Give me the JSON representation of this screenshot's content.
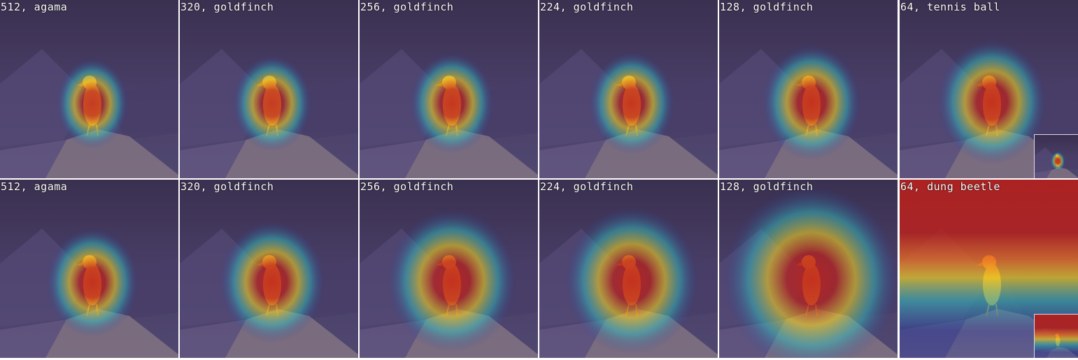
{
  "rows": [
    {
      "panels": [
        {
          "label": "512, agama",
          "spread": 0.18,
          "heat": 0.9,
          "inset": false
        },
        {
          "label": "320, goldfinch",
          "spread": 0.22,
          "heat": 0.9,
          "inset": false
        },
        {
          "label": "256, goldfinch",
          "spread": 0.25,
          "heat": 0.95,
          "inset": false
        },
        {
          "label": "224, goldfinch",
          "spread": 0.26,
          "heat": 0.95,
          "inset": false
        },
        {
          "label": "128, goldfinch",
          "spread": 0.34,
          "heat": 1.0,
          "inset": false
        },
        {
          "label": "64, tennis ball",
          "spread": 0.4,
          "heat": 1.0,
          "inset": true
        }
      ]
    },
    {
      "panels": [
        {
          "label": "512, agama",
          "spread": 0.3,
          "heat": 1.0,
          "inset": false
        },
        {
          "label": "320, goldfinch",
          "spread": 0.38,
          "heat": 1.0,
          "inset": false
        },
        {
          "label": "256, goldfinch",
          "spread": 0.52,
          "heat": 1.0,
          "inset": false
        },
        {
          "label": "224, goldfinch",
          "spread": 0.55,
          "heat": 1.0,
          "inset": false
        },
        {
          "label": "128, goldfinch",
          "spread": 0.8,
          "heat": 1.0,
          "inset": false
        },
        {
          "label": "64, dung beetle",
          "spread": 1.0,
          "heat": 1.0,
          "inset": true
        }
      ]
    }
  ],
  "colors": {
    "background": "#3e3558",
    "rock": "#8a7a86",
    "bird": "#e8a030",
    "heat_hot": "#c0201a",
    "heat_warm": "#f0d020",
    "heat_cool": "#30c0c0",
    "heat_cold": "#2a3aa0"
  },
  "icons": {
    "subject": "bird-silhouette",
    "heatmap": "saliency-heatmap-overlay"
  }
}
